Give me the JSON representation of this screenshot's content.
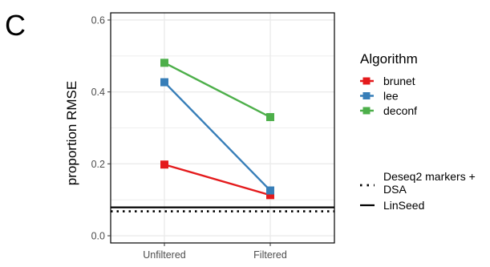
{
  "panel_label": "C",
  "colors": {
    "brunet": "#E41A1C",
    "lee": "#377EB8",
    "deconf": "#4DAF4A",
    "grid": "#ebebeb",
    "reference": "#000000"
  },
  "chart_data": {
    "type": "line",
    "title": "",
    "xlabel": "",
    "ylabel": "proportion RMSE",
    "categories": [
      "Unfiltered",
      "Filtered"
    ],
    "ylim": [
      -0.02,
      0.62
    ],
    "yticks": [
      0.0,
      0.2,
      0.4,
      0.6
    ],
    "ytick_labels": [
      "0.0",
      "0.2",
      "0.4",
      "0.6"
    ],
    "grid": true,
    "legend_position": "right",
    "legend_title": "Algorithm",
    "series": [
      {
        "name": "brunet",
        "color": "#E41A1C",
        "values": [
          0.198,
          0.113
        ]
      },
      {
        "name": "lee",
        "color": "#377EB8",
        "values": [
          0.427,
          0.126
        ]
      },
      {
        "name": "deconf",
        "color": "#4DAF4A",
        "values": [
          0.481,
          0.33
        ]
      }
    ],
    "reference_lines": [
      {
        "name": "Deseq2 markers + DSA",
        "label_lines": [
          "Deseq2 markers +",
          "DSA"
        ],
        "style": "dotted",
        "value": 0.068
      },
      {
        "name": "LinSeed",
        "label_lines": [
          "LinSeed"
        ],
        "style": "solid",
        "value": 0.079
      }
    ]
  }
}
